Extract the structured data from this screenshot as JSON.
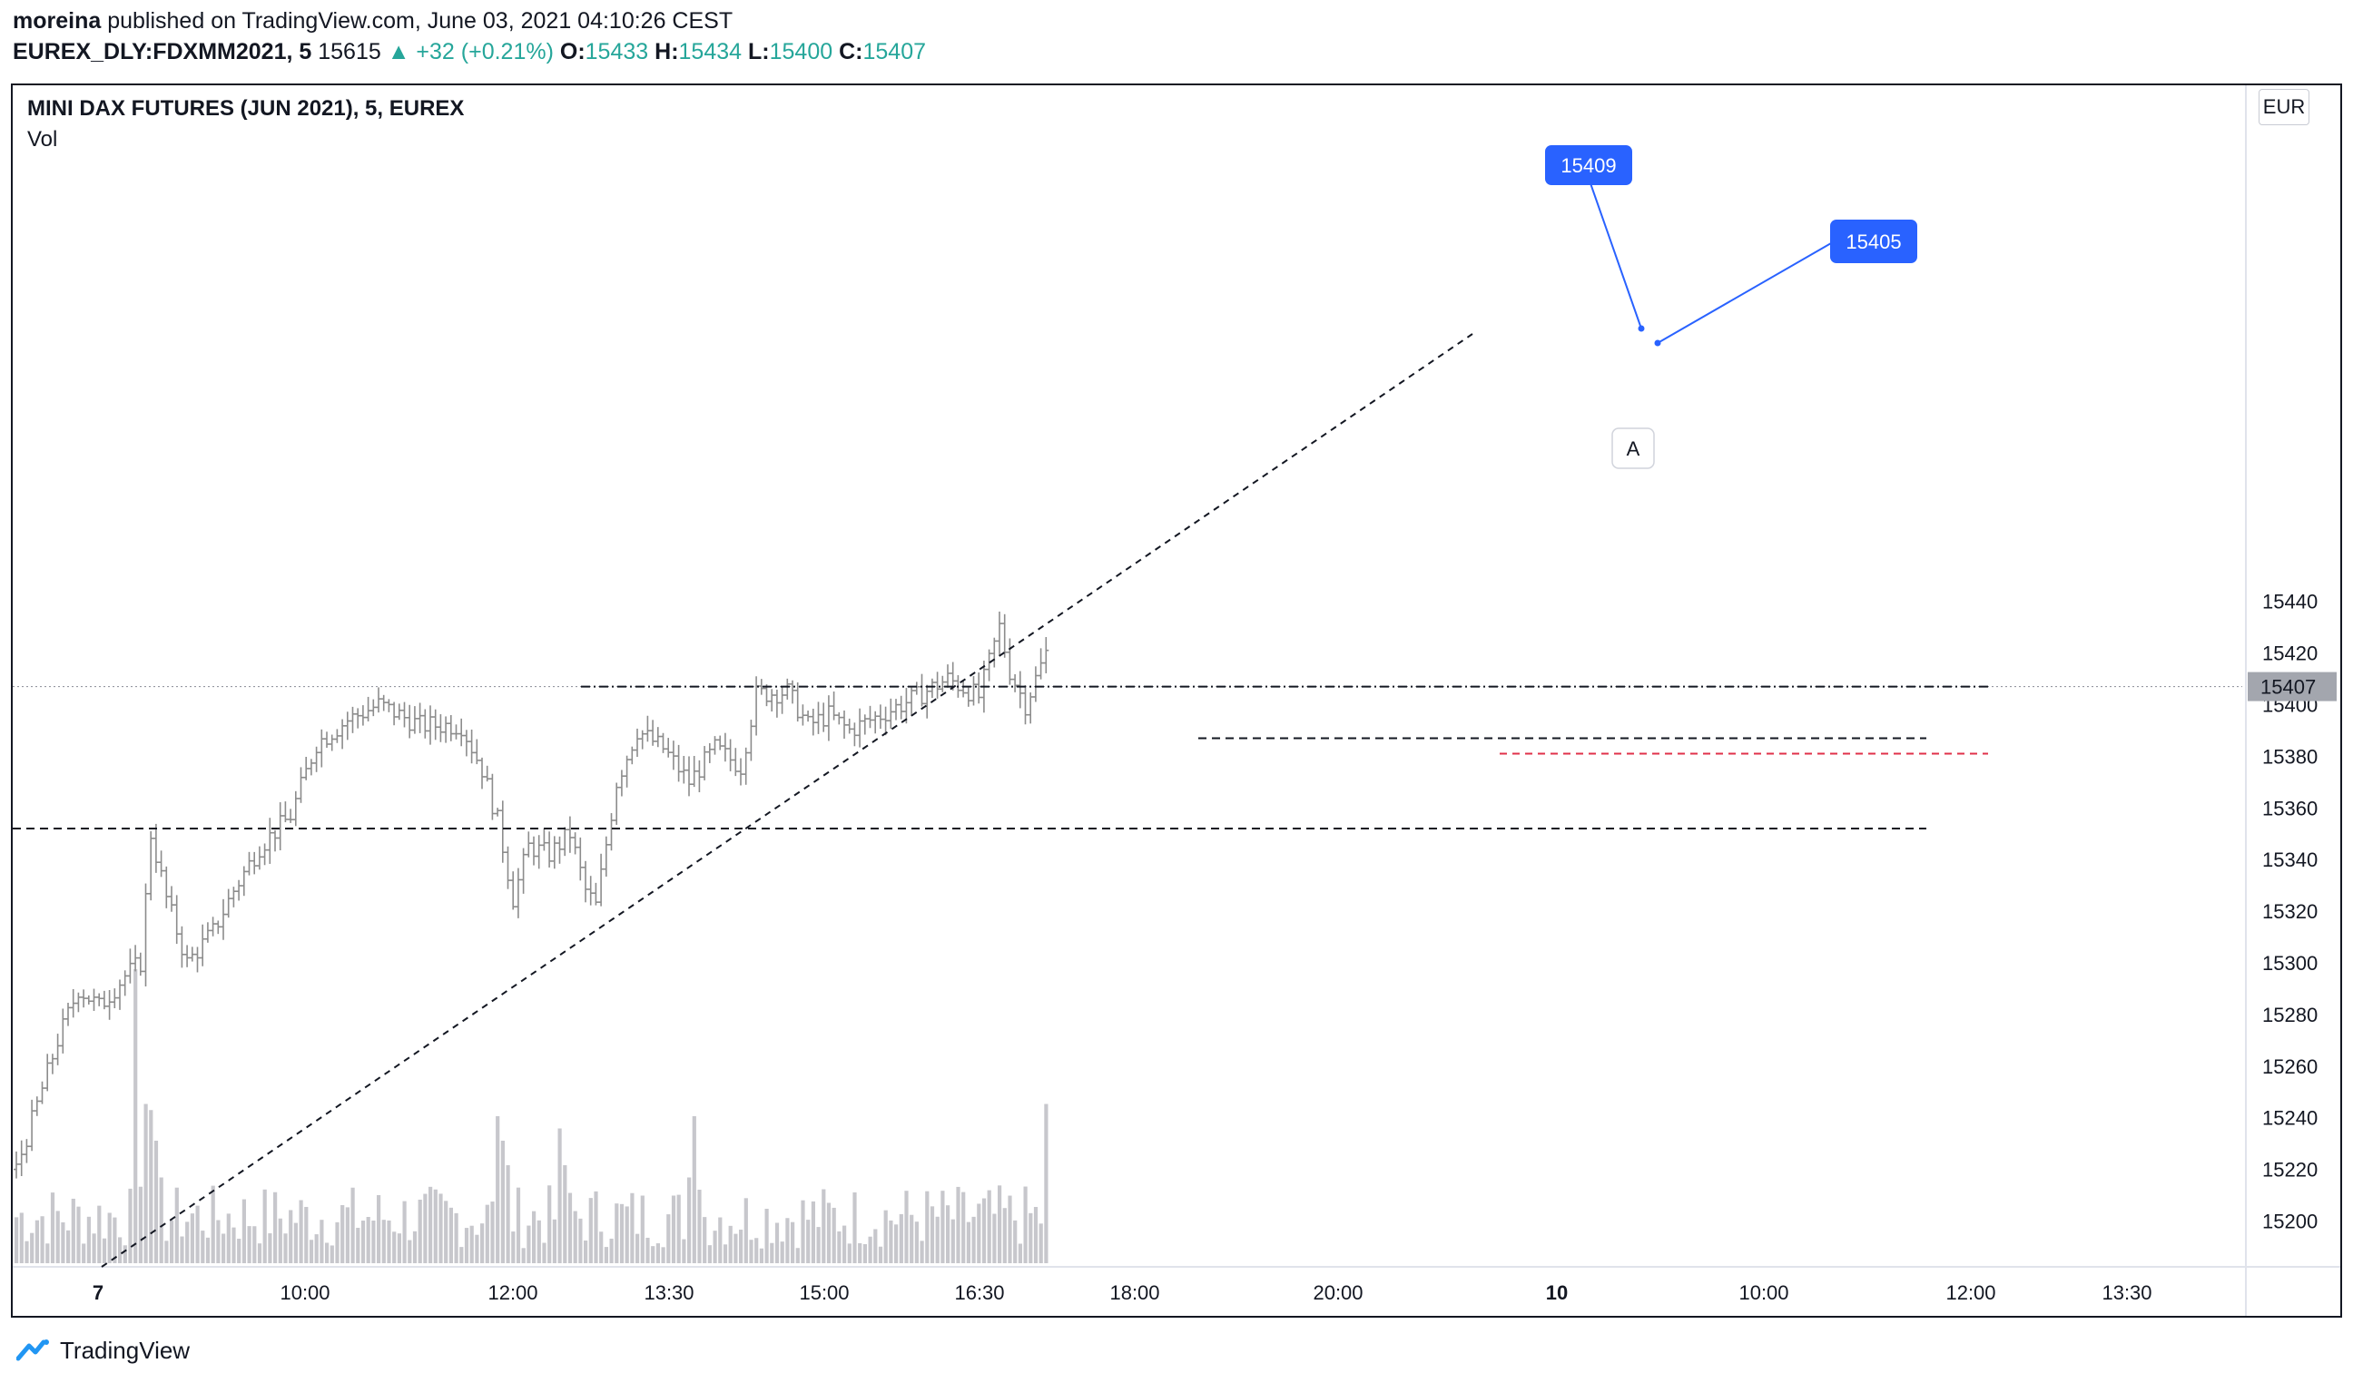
{
  "header": {
    "author": "moreina",
    "published_text": " published on TradingView.com, June 03, 2021 04:10:26 CEST"
  },
  "symbol_bar": {
    "symbol": "EUREX_DLY:FDXMM2021, 5",
    "last": "15615",
    "change": "+32 (+0.21%)",
    "open_label": "O:",
    "open": "15433",
    "high_label": "H:",
    "high": "15434",
    "low_label": "L:",
    "low": "15400",
    "close_label": "C:",
    "close": "15407"
  },
  "chart_header": {
    "title": "MINI DAX FUTURES (JUN 2021), 5, EUREX",
    "volume_label": "Vol",
    "currency": "EUR"
  },
  "footer": {
    "brand": "TradingView"
  },
  "colors": {
    "bar": "#8c8c8c",
    "volume": "#c7c7cc",
    "accent": "#2962ff",
    "up": "#26a69a",
    "price_tag": "#a3a6ae",
    "red_line": "#e0304a"
  },
  "chart_data": {
    "type": "ohlc",
    "ylim": [
      15188,
      15468
    ],
    "y_ticks": [
      15200,
      15220,
      15240,
      15260,
      15280,
      15300,
      15320,
      15340,
      15360,
      15380,
      15400,
      15420,
      15440
    ],
    "x_ticks": [
      "7",
      "10:00",
      "12:00",
      "13:30",
      "15:00",
      "16:30",
      "18:00",
      "20:00",
      "10",
      "10:00",
      "12:00",
      "13:30"
    ],
    "bold_x_ticks": [
      "7",
      "10"
    ],
    "last_price": 15407,
    "horizontal_levels": [
      15352,
      15387,
      15407
    ],
    "red_level": 15381,
    "callouts": [
      "15409",
      "15405"
    ],
    "marker": "A",
    "anchors": [
      {
        "t": 0,
        "p": 15220
      },
      {
        "t": 4,
        "p": 15245
      },
      {
        "t": 8,
        "p": 15270
      },
      {
        "t": 12,
        "p": 15290
      },
      {
        "t": 16,
        "p": 15283
      },
      {
        "t": 21,
        "p": 15295
      },
      {
        "t": 24,
        "p": 15300
      },
      {
        "t": 26,
        "p": 15350
      },
      {
        "t": 29,
        "p": 15325
      },
      {
        "t": 33,
        "p": 15300
      },
      {
        "t": 38,
        "p": 15312
      },
      {
        "t": 42,
        "p": 15328
      },
      {
        "t": 47,
        "p": 15345
      },
      {
        "t": 53,
        "p": 15357
      },
      {
        "t": 58,
        "p": 15385
      },
      {
        "t": 64,
        "p": 15394
      },
      {
        "t": 70,
        "p": 15400
      },
      {
        "t": 78,
        "p": 15392
      },
      {
        "t": 86,
        "p": 15392
      },
      {
        "t": 90,
        "p": 15375
      },
      {
        "t": 93,
        "p": 15355
      },
      {
        "t": 96,
        "p": 15325
      },
      {
        "t": 99,
        "p": 15345
      },
      {
        "t": 103,
        "p": 15342
      },
      {
        "t": 107,
        "p": 15350
      },
      {
        "t": 110,
        "p": 15328
      },
      {
        "t": 112,
        "p": 15322
      },
      {
        "t": 116,
        "p": 15370
      },
      {
        "t": 120,
        "p": 15390
      },
      {
        "t": 125,
        "p": 15383
      },
      {
        "t": 130,
        "p": 15370
      },
      {
        "t": 135,
        "p": 15383
      },
      {
        "t": 140,
        "p": 15376
      },
      {
        "t": 143,
        "p": 15404
      },
      {
        "t": 149,
        "p": 15405
      },
      {
        "t": 153,
        "p": 15392
      },
      {
        "t": 157,
        "p": 15396
      },
      {
        "t": 161,
        "p": 15390
      },
      {
        "t": 167,
        "p": 15396
      },
      {
        "t": 173,
        "p": 15402
      },
      {
        "t": 180,
        "p": 15410
      },
      {
        "t": 186,
        "p": 15403
      },
      {
        "t": 190,
        "p": 15430
      },
      {
        "t": 192,
        "p": 15413
      },
      {
        "t": 195,
        "p": 15400
      },
      {
        "t": 197,
        "p": 15410
      },
      {
        "t": 199,
        "p": 15420
      }
    ],
    "volume_spikes": [
      {
        "t": 23,
        "v": 2400
      },
      {
        "t": 25,
        "v": 1300
      },
      {
        "t": 26,
        "v": 1250
      },
      {
        "t": 27,
        "v": 1000
      },
      {
        "t": 28,
        "v": 700
      },
      {
        "t": 93,
        "v": 1200
      },
      {
        "t": 94,
        "v": 1000
      },
      {
        "t": 95,
        "v": 800
      },
      {
        "t": 105,
        "v": 1100
      },
      {
        "t": 106,
        "v": 800
      },
      {
        "t": 130,
        "v": 700
      },
      {
        "t": 131,
        "v": 1200
      },
      {
        "t": 132,
        "v": 600
      },
      {
        "t": 199,
        "v": 1300
      }
    ],
    "volume_max": 2400
  }
}
